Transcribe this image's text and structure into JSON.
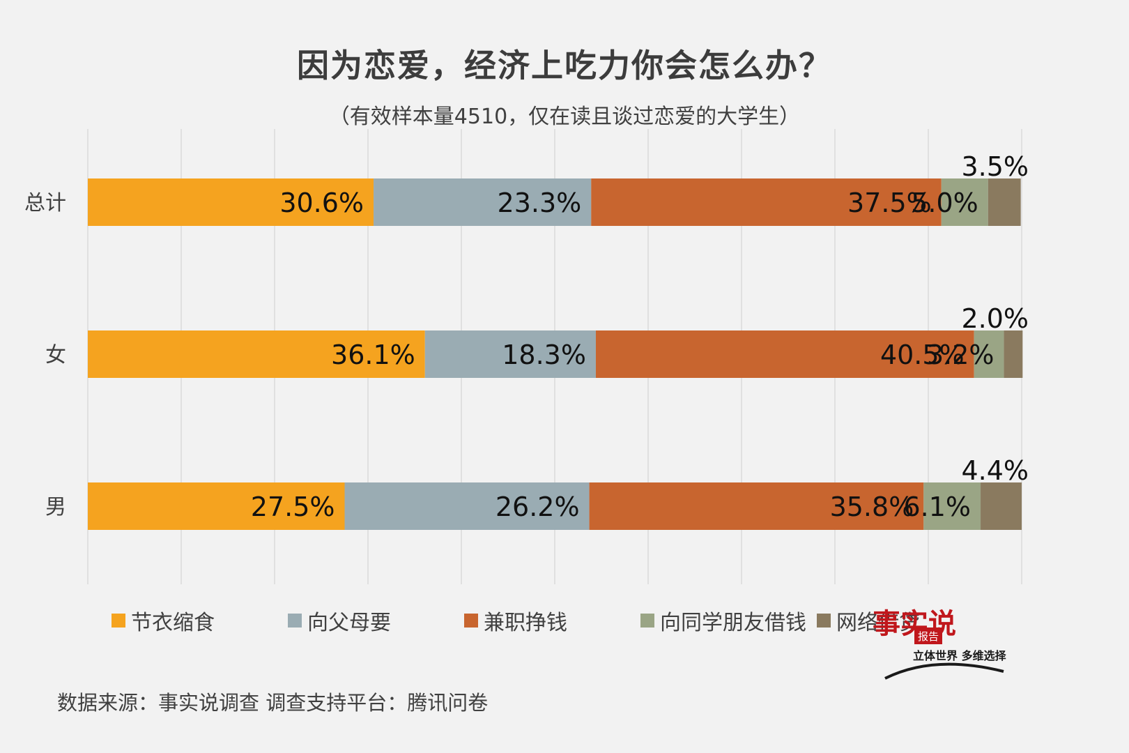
{
  "chart_data": {
    "type": "bar",
    "orientation": "horizontal-stacked-100",
    "title": "因为恋爱，经济上吃力你会怎么办？",
    "subtitle": "（有效样本量4510，仅在读且谈过恋爱的大学生）",
    "categories": [
      "总计",
      "女",
      "男"
    ],
    "series": [
      {
        "name": "节衣缩食",
        "color": "#f5a31f",
        "values": [
          30.6,
          36.1,
          27.5
        ],
        "labels": [
          "30.6%",
          "36.1%",
          "27.5%"
        ]
      },
      {
        "name": "向父母要",
        "color": "#9aacb3",
        "values": [
          23.3,
          18.3,
          26.2
        ],
        "labels": [
          "23.3%",
          "18.3%",
          "26.2%"
        ]
      },
      {
        "name": "兼职挣钱",
        "color": "#c8652f",
        "values": [
          37.5,
          40.5,
          35.8
        ],
        "labels": [
          "37.5%",
          "40.5%",
          "35.8%"
        ]
      },
      {
        "name": "向同学朋友借钱",
        "color": "#9aa585",
        "values": [
          5.0,
          3.2,
          6.1
        ],
        "labels": [
          "5.0%",
          "3.2%",
          "6.1%"
        ]
      },
      {
        "name": "网络借贷",
        "color": "#8a7a5f",
        "values": [
          3.5,
          2.0,
          4.4
        ],
        "labels": [
          "3.5%",
          "2.0%",
          "4.4%"
        ]
      }
    ],
    "xlim": [
      0,
      100
    ],
    "grid": true,
    "legend": "bottom"
  },
  "source": "数据来源：事实说调查    调查支持平台：腾讯问卷",
  "logo": {
    "main": "事实说",
    "badge": "报告",
    "slogan": "立体世界 多维选择"
  },
  "colors": {
    "background": "#f2f2f2",
    "text": "#404040",
    "grid": "#d9d9d9"
  }
}
